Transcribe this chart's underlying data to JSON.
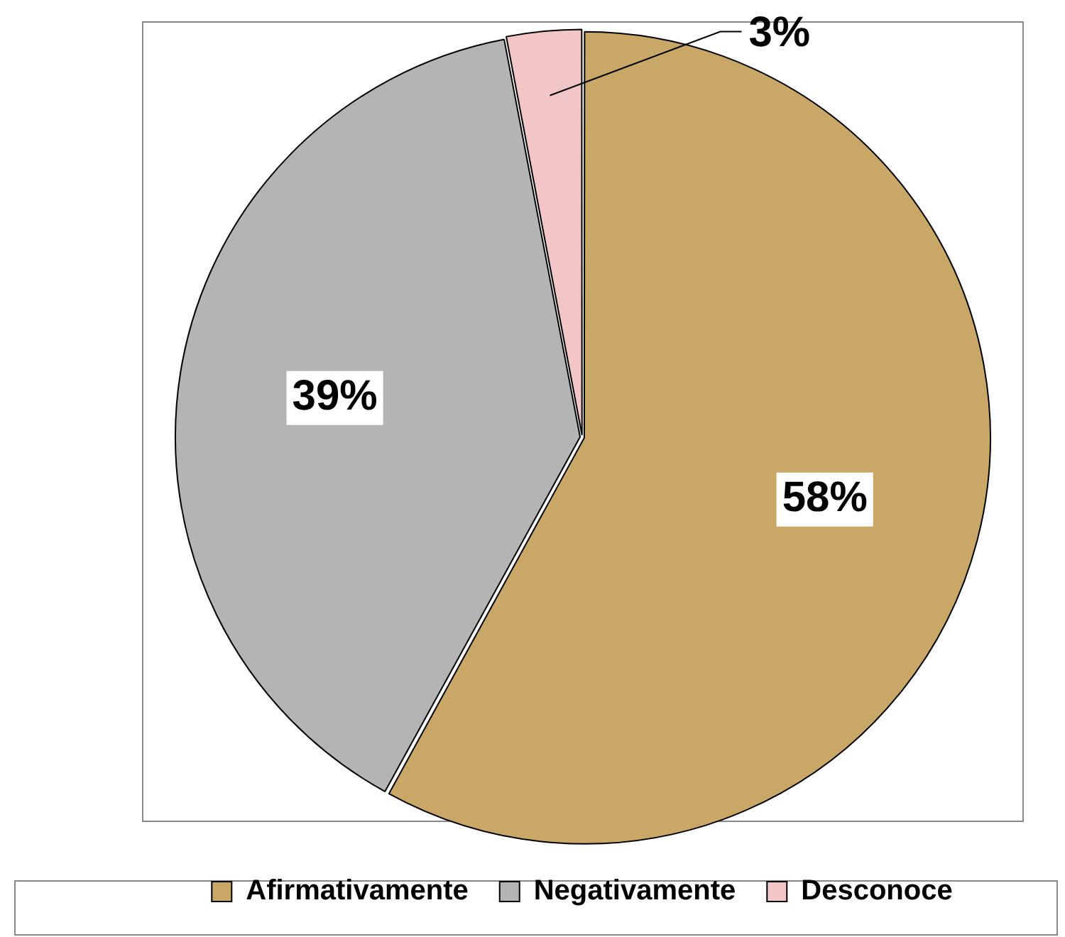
{
  "chart_data": {
    "type": "pie",
    "categories": [
      "Afirmativamente",
      "Negativamente",
      "Desconoce"
    ],
    "values": [
      58,
      39,
      3
    ],
    "colors": [
      "#c9a867",
      "#b4b4b4",
      "#f2c6c6"
    ],
    "value_labels": [
      "58%",
      "39%",
      "3%"
    ],
    "legend": "bottom"
  }
}
